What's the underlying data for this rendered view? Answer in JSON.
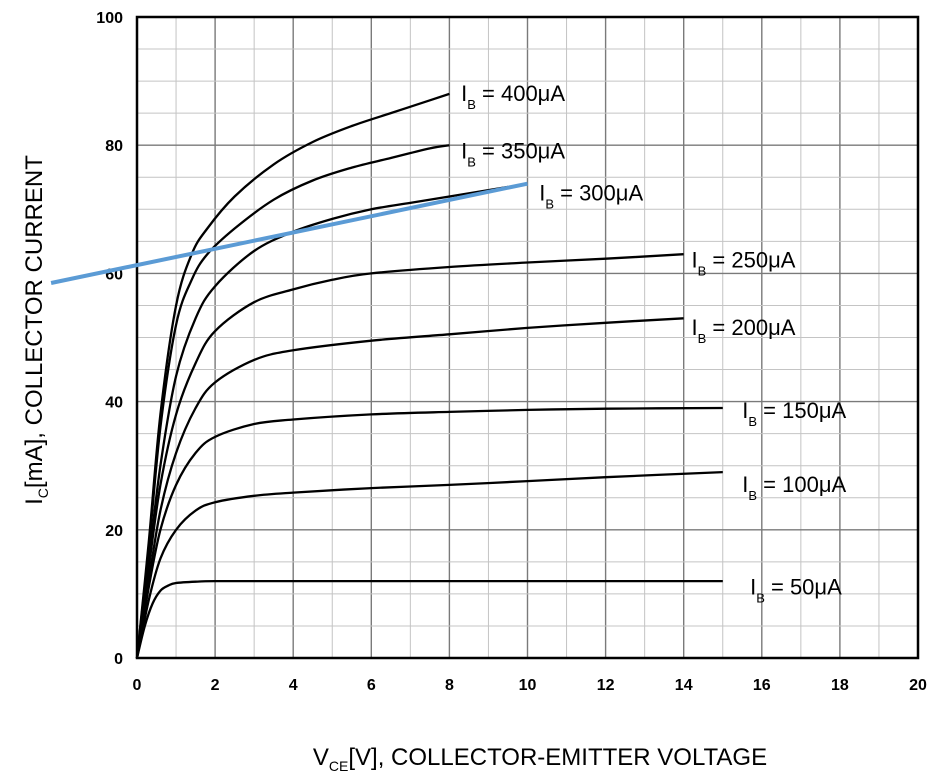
{
  "chart_data": {
    "type": "line",
    "xlabel": "V",
    "xlabel_sub": "CE",
    "xlabel_rest": "[V], COLLECTOR-EMITTER VOLTAGE",
    "ylabel": "I",
    "ylabel_sub": "C",
    "ylabel_rest": "[mA], COLLECTOR CURRENT",
    "xlim": [
      0,
      20
    ],
    "ylim": [
      0,
      100
    ],
    "xticks": [
      "0",
      "2",
      "4",
      "6",
      "8",
      "10",
      "12",
      "14",
      "16",
      "18",
      "20"
    ],
    "yticks": [
      "0",
      "20",
      "40",
      "60",
      "80",
      "100"
    ],
    "grid": true,
    "series": [
      {
        "name": "IB = 400μA",
        "label_main": "I",
        "label_sub": "B",
        "label_rest": " = 400μA",
        "label_at": [
          8.3,
          88
        ],
        "x": [
          0,
          0.3,
          0.6,
          1.0,
          1.4,
          1.8,
          2.5,
          3.5,
          4.5,
          5.5,
          6.5,
          7.5,
          8.0
        ],
        "y": [
          0,
          18,
          38,
          55,
          63,
          67,
          72,
          77,
          80.5,
          83,
          85,
          87,
          88
        ]
      },
      {
        "name": "IB = 350μA",
        "label_main": "I",
        "label_sub": "B",
        "label_rest": " = 350μA",
        "label_at": [
          8.3,
          79
        ],
        "x": [
          0,
          0.3,
          0.6,
          1.0,
          1.4,
          1.8,
          2.5,
          3.5,
          4.5,
          5.5,
          6.5,
          7.5,
          8.0
        ],
        "y": [
          0,
          17,
          36,
          52,
          59,
          63,
          67,
          71.5,
          74.5,
          76.5,
          78,
          79.5,
          80
        ]
      },
      {
        "name": "IB = 300μA",
        "label_main": "I",
        "label_sub": "B",
        "label_rest": " = 300μA",
        "label_at": [
          10.3,
          72.5
        ],
        "x": [
          0,
          0.3,
          0.6,
          1.0,
          1.5,
          2.0,
          3.0,
          4.0,
          5.0,
          6.0,
          7.0,
          8.0,
          9.0,
          9.5
        ],
        "y": [
          0,
          15,
          30,
          44,
          53,
          58,
          63.5,
          66.5,
          68.5,
          70,
          71,
          72,
          73,
          73.5
        ]
      },
      {
        "name": "IB = 250μA",
        "label_main": "I",
        "label_sub": "B",
        "label_rest": " = 250μA",
        "label_at": [
          14.2,
          62
        ],
        "x": [
          0,
          0.3,
          0.6,
          1.0,
          1.5,
          2.0,
          3.0,
          4.0,
          5.0,
          6.0,
          8.0,
          10.0,
          12.0,
          14.0
        ],
        "y": [
          0,
          14,
          27,
          38,
          46,
          51,
          55.5,
          57.5,
          59,
          60,
          61,
          61.7,
          62.3,
          63
        ]
      },
      {
        "name": "IB = 200μA",
        "label_main": "I",
        "label_sub": "B",
        "label_rest": " = 200μA",
        "label_at": [
          14.2,
          51.5
        ],
        "x": [
          0,
          0.3,
          0.6,
          1.0,
          1.5,
          2.0,
          3.0,
          4.0,
          6.0,
          8.0,
          10.0,
          12.0,
          14.0
        ],
        "y": [
          0,
          12,
          23,
          32,
          39,
          43,
          46.5,
          48,
          49.5,
          50.5,
          51.5,
          52.3,
          53
        ]
      },
      {
        "name": "IB = 150μA",
        "label_main": "I",
        "label_sub": "B",
        "label_rest": " = 150μA",
        "label_at": [
          15.5,
          38.5
        ],
        "x": [
          0,
          0.3,
          0.6,
          1.0,
          1.5,
          2.0,
          3.0,
          4.0,
          6.0,
          8.0,
          10.0,
          12.0,
          15.0
        ],
        "y": [
          0,
          11,
          20,
          27,
          32,
          34.5,
          36.5,
          37.2,
          38,
          38.4,
          38.7,
          38.9,
          39
        ]
      },
      {
        "name": "IB = 100μA",
        "label_main": "I",
        "label_sub": "B",
        "label_rest": " = 100μA",
        "label_at": [
          15.5,
          27
        ],
        "x": [
          0,
          0.3,
          0.6,
          1.0,
          1.5,
          2.0,
          3.0,
          4.0,
          6.0,
          8.0,
          10.0,
          12.0,
          15.0
        ],
        "y": [
          0,
          9,
          15.5,
          20,
          23,
          24.3,
          25.3,
          25.8,
          26.5,
          27,
          27.6,
          28.2,
          29
        ]
      },
      {
        "name": "IB = 50μA",
        "label_main": "I",
        "label_sub": "B",
        "label_rest": " = 50μA",
        "label_at": [
          15.7,
          11
        ],
        "x": [
          0,
          0.2,
          0.4,
          0.6,
          0.8,
          1.0,
          1.5,
          2.0,
          4.0,
          8.0,
          12.0,
          15.0
        ],
        "y": [
          0,
          5,
          8.5,
          10.5,
          11.3,
          11.7,
          11.9,
          12,
          12,
          12,
          12,
          12
        ]
      }
    ],
    "annotation_line": {
      "color": "#5b9bd5",
      "x": [
        -2.2,
        10.0
      ],
      "y": [
        58.5,
        74
      ]
    }
  }
}
